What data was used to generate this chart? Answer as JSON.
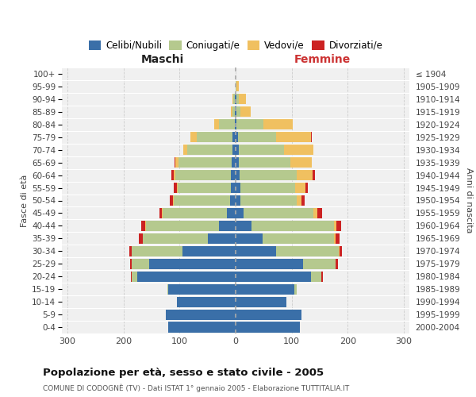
{
  "age_groups": [
    "0-4",
    "5-9",
    "10-14",
    "15-19",
    "20-24",
    "25-29",
    "30-34",
    "35-39",
    "40-44",
    "45-49",
    "50-54",
    "55-59",
    "60-64",
    "65-69",
    "70-74",
    "75-79",
    "80-84",
    "85-89",
    "90-94",
    "95-99",
    "100+"
  ],
  "birth_years": [
    "2000-2004",
    "1995-1999",
    "1990-1994",
    "1985-1989",
    "1980-1984",
    "1975-1979",
    "1970-1974",
    "1965-1969",
    "1960-1964",
    "1955-1959",
    "1950-1954",
    "1945-1949",
    "1940-1944",
    "1935-1939",
    "1930-1934",
    "1925-1929",
    "1920-1924",
    "1915-1919",
    "1910-1914",
    "1905-1909",
    "≤ 1904"
  ],
  "males_celibi": [
    120,
    125,
    105,
    120,
    175,
    155,
    95,
    50,
    30,
    15,
    10,
    8,
    8,
    7,
    6,
    5,
    2,
    1,
    1,
    0,
    0
  ],
  "males_coniugati": [
    0,
    0,
    0,
    2,
    10,
    30,
    90,
    115,
    130,
    115,
    100,
    95,
    100,
    95,
    80,
    65,
    28,
    5,
    3,
    0,
    0
  ],
  "males_vedovi": [
    0,
    0,
    0,
    0,
    0,
    0,
    0,
    0,
    1,
    1,
    2,
    2,
    3,
    5,
    8,
    10,
    8,
    2,
    1,
    0,
    0
  ],
  "males_divorziati": [
    0,
    0,
    0,
    0,
    2,
    3,
    5,
    8,
    8,
    5,
    5,
    5,
    3,
    2,
    0,
    0,
    0,
    0,
    0,
    0,
    0
  ],
  "females_nubili": [
    115,
    118,
    90,
    105,
    135,
    120,
    72,
    48,
    28,
    14,
    9,
    8,
    7,
    6,
    5,
    4,
    2,
    1,
    1,
    0,
    0
  ],
  "females_coniugate": [
    0,
    0,
    0,
    4,
    18,
    58,
    112,
    128,
    148,
    125,
    100,
    98,
    102,
    92,
    82,
    68,
    48,
    8,
    4,
    1,
    0
  ],
  "females_vedove": [
    0,
    0,
    0,
    0,
    0,
    0,
    1,
    2,
    4,
    7,
    9,
    18,
    28,
    38,
    52,
    62,
    52,
    18,
    14,
    5,
    0
  ],
  "females_divorziate": [
    0,
    0,
    0,
    0,
    2,
    4,
    5,
    8,
    8,
    8,
    5,
    5,
    5,
    0,
    0,
    2,
    0,
    0,
    0,
    0,
    0
  ],
  "color_celibi": "#3a6fa8",
  "color_coniugati": "#b5c98e",
  "color_vedovi": "#f0c060",
  "color_divorziati": "#cc2222",
  "title": "Popolazione per età, sesso e stato civile - 2005",
  "subtitle": "COMUNE DI CODOGNÈ (TV) - Dati ISTAT 1° gennaio 2005 - Elaborazione TUTTITALIA.IT",
  "label_maschi": "Maschi",
  "label_femmine": "Femmine",
  "ylabel_left": "Fasce di età",
  "ylabel_right": "Anni di nascita",
  "xlim": 310,
  "xticks": [
    -300,
    -200,
    -100,
    0,
    100,
    200,
    300
  ],
  "legend_labels": [
    "Celibi/Nubili",
    "Coniugati/e",
    "Vedovi/e",
    "Divorziati/e"
  ],
  "bg_color": "#ffffff",
  "plot_bg": "#f0f0f0",
  "grid_color": "#cccccc"
}
